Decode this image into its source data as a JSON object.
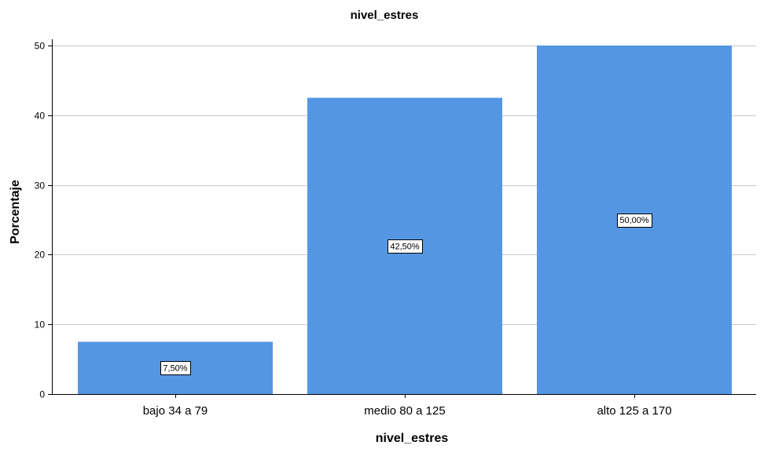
{
  "chart_data": {
    "type": "bar",
    "title": "nivel_estres",
    "xlabel": "nivel_estres",
    "ylabel": "Porcentaje",
    "categories": [
      "bajo 34 a 79",
      "medio 80 a 125",
      "alto 125 a 170"
    ],
    "values": [
      7.5,
      42.5,
      50.0
    ],
    "data_labels": [
      "7,50%",
      "42,50%",
      "50,00%"
    ],
    "ylim": [
      0,
      50
    ],
    "yticks": [
      0,
      10,
      20,
      30,
      40,
      50
    ],
    "grid": true,
    "legend": "none",
    "colors": {
      "bar": "#5596e3",
      "grid": "#c8c8c8",
      "axis": "#000000"
    }
  }
}
